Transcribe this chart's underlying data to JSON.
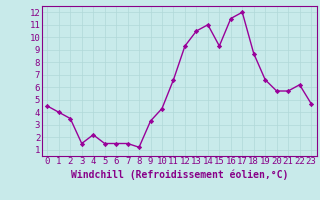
{
  "x": [
    0,
    1,
    2,
    3,
    4,
    5,
    6,
    7,
    8,
    9,
    10,
    11,
    12,
    13,
    14,
    15,
    16,
    17,
    18,
    19,
    20,
    21,
    22,
    23
  ],
  "y": [
    4.5,
    4.0,
    3.5,
    1.5,
    2.2,
    1.5,
    1.5,
    1.5,
    1.2,
    3.3,
    4.3,
    6.6,
    9.3,
    10.5,
    11.0,
    9.3,
    11.5,
    12.0,
    8.7,
    6.6,
    5.7,
    5.7,
    6.2,
    4.7
  ],
  "line_color": "#990099",
  "marker": "D",
  "marker_size": 2.2,
  "bg_color": "#c8eaea",
  "grid_color": "#b0d8d8",
  "xlabel": "Windchill (Refroidissement éolien,°C)",
  "xlim": [
    -0.5,
    23.5
  ],
  "ylim": [
    0.5,
    12.5
  ],
  "xticks": [
    0,
    1,
    2,
    3,
    4,
    5,
    6,
    7,
    8,
    9,
    10,
    11,
    12,
    13,
    14,
    15,
    16,
    17,
    18,
    19,
    20,
    21,
    22,
    23
  ],
  "yticks": [
    1,
    2,
    3,
    4,
    5,
    6,
    7,
    8,
    9,
    10,
    11,
    12
  ],
  "xlabel_fontsize": 7,
  "tick_fontsize": 6.5,
  "axis_label_color": "#880088",
  "tick_label_color": "#880088",
  "spine_color": "#880088",
  "line_width": 1.0
}
